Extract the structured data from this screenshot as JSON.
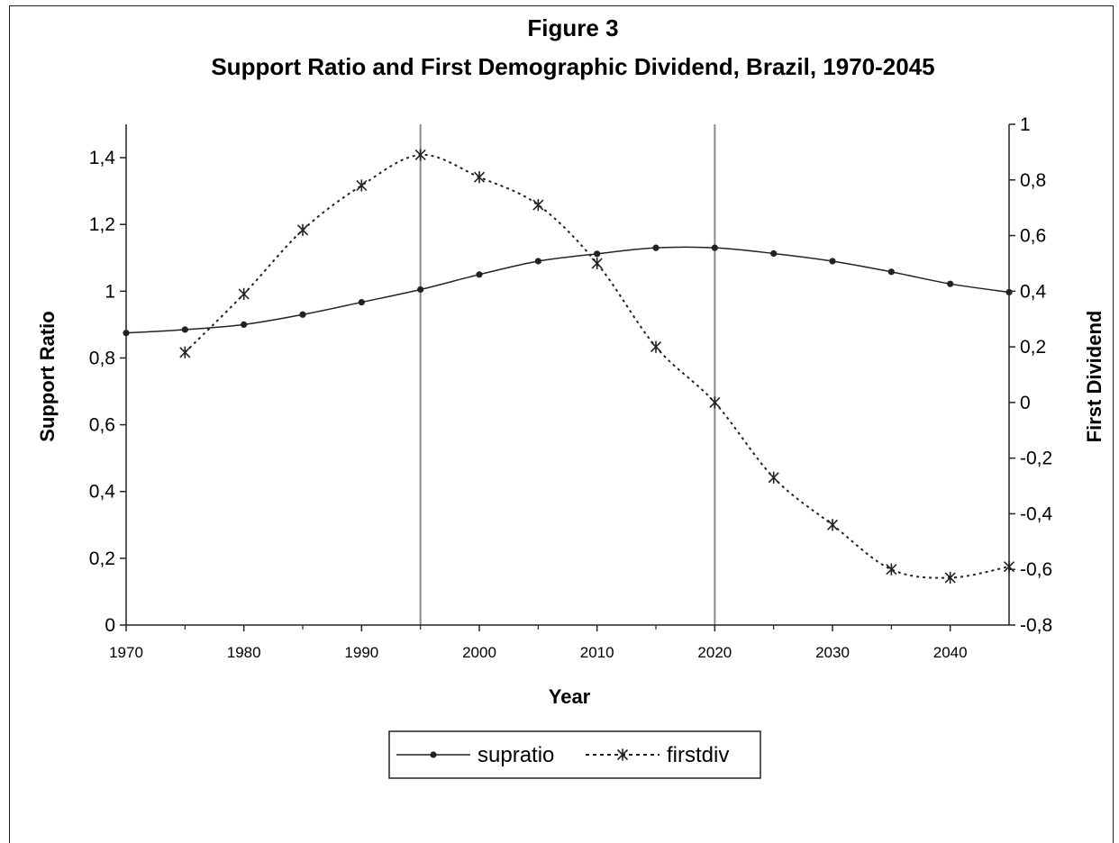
{
  "chart_data": {
    "type": "line",
    "title": "Figure 3",
    "subtitle": "Support Ratio and First Demographic Dividend, Brazil, 1970-2045",
    "xlabel": "Year",
    "ylabel": "Support Ratio",
    "y2label": "First Dividend",
    "xlim": [
      1970,
      2045
    ],
    "ylim": [
      0,
      1.5
    ],
    "y2lim": [
      -0.8,
      1
    ],
    "x_ticks": [
      "1970",
      "1980",
      "1990",
      "2000",
      "2010",
      "2020",
      "2030",
      "2040"
    ],
    "y_ticks": [
      "0",
      "0,2",
      "0,4",
      "0,6",
      "0,8",
      "1",
      "1,2",
      "1,4"
    ],
    "y2_ticks": [
      "-0,8",
      "-0,6",
      "-0,4",
      "-0,2",
      "0",
      "0,2",
      "0,4",
      "0,6",
      "0,8",
      "1"
    ],
    "reference_lines_x": [
      1995,
      2020
    ],
    "grid": false,
    "legend_position": "bottom",
    "series": [
      {
        "name": "supratio",
        "axis": "left",
        "style": "solid",
        "marker": "dot",
        "x": [
          1970,
          1975,
          1980,
          1985,
          1990,
          1995,
          2000,
          2005,
          2010,
          2015,
          2020,
          2025,
          2030,
          2035,
          2040,
          2045
        ],
        "values": [
          0.875,
          0.885,
          0.9,
          0.93,
          0.967,
          1.005,
          1.05,
          1.09,
          1.112,
          1.13,
          1.13,
          1.113,
          1.09,
          1.058,
          1.022,
          0.997
        ]
      },
      {
        "name": "firstdiv",
        "axis": "right",
        "style": "dotted",
        "marker": "star",
        "x": [
          1975,
          1980,
          1985,
          1990,
          1995,
          2000,
          2005,
          2010,
          2015,
          2020,
          2025,
          2030,
          2035,
          2040,
          2045
        ],
        "values": [
          0.18,
          0.39,
          0.62,
          0.78,
          0.89,
          0.81,
          0.71,
          0.5,
          0.2,
          0.0,
          -0.27,
          -0.44,
          -0.6,
          -0.63,
          -0.59
        ]
      }
    ]
  },
  "colors": {
    "line": "#222222",
    "reference_line": "#8c8c8c",
    "frame": "#222222"
  }
}
